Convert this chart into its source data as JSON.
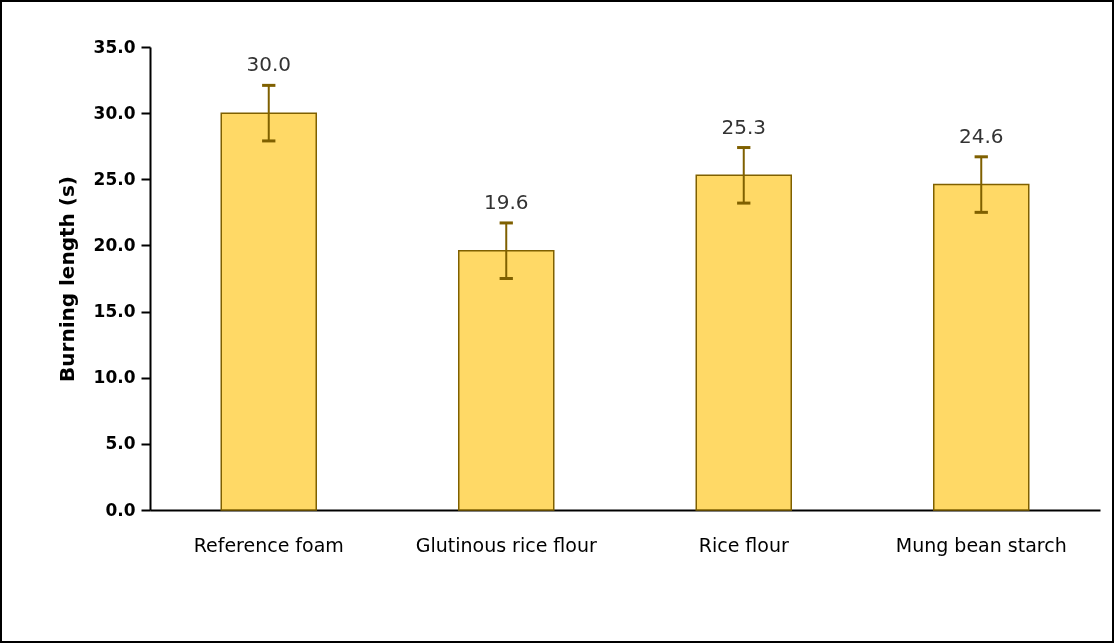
{
  "chart_data": {
    "type": "bar",
    "ylabel": "Burning length (s)",
    "categories": [
      "Reference foam",
      "Glutinous rice flour",
      "Rice flour",
      "Mung bean starch"
    ],
    "values": [
      30.0,
      19.6,
      25.3,
      24.6
    ],
    "errors": [
      2.1,
      2.1,
      2.1,
      2.1
    ],
    "value_labels": [
      "30.0",
      "19.6",
      "25.3",
      "24.6"
    ],
    "color": "#ffd966",
    "ylim": [
      0,
      35
    ],
    "yticks": [
      {
        "value": 0,
        "label": "0.0"
      },
      {
        "value": 5,
        "label": "5.0"
      },
      {
        "value": 10,
        "label": "10.0"
      },
      {
        "value": 15,
        "label": "15.0"
      },
      {
        "value": 20,
        "label": "20.0"
      },
      {
        "value": 25,
        "label": "25.0"
      },
      {
        "value": 30,
        "label": "30.0"
      },
      {
        "value": 35,
        "label": "35.0"
      }
    ],
    "grid": false
  }
}
